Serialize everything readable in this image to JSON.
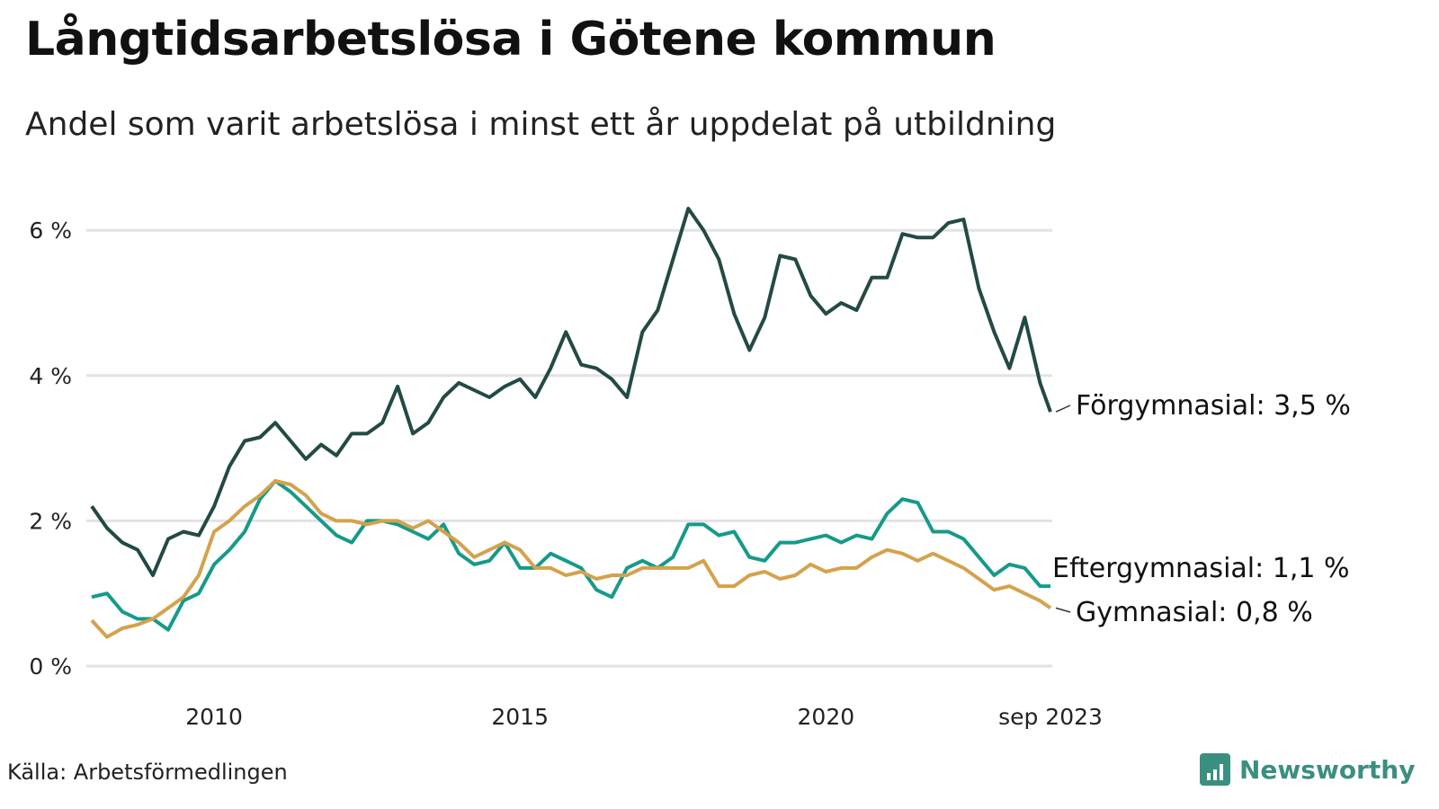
{
  "title": "Långtidsarbetslösa i Götene kommun",
  "subtitle": "Andel som varit arbetslösa i minst ett år uppdelat på utbildning",
  "source": "Källa: Arbetsförmedlingen",
  "brand": "Newsworthy",
  "chart_data": {
    "type": "line",
    "title": "Långtidsarbetslösa i Götene kommun",
    "xlabel": "",
    "ylabel": "",
    "xlim": [
      2008.0,
      2023.67
    ],
    "ylim": [
      0,
      6.6
    ],
    "grid": true,
    "y_ticks": [
      {
        "v": 0,
        "label": "0 %"
      },
      {
        "v": 2,
        "label": "2 %"
      },
      {
        "v": 4,
        "label": "4 %"
      },
      {
        "v": 6,
        "label": "6 %"
      }
    ],
    "x_ticks": [
      {
        "v": 2010,
        "label": "2010"
      },
      {
        "v": 2015,
        "label": "2015"
      },
      {
        "v": 2020,
        "label": "2020"
      },
      {
        "v": 2023.67,
        "label": "sep 2023"
      }
    ],
    "x": [
      2008.0,
      2008.25,
      2008.5,
      2008.75,
      2009.0,
      2009.25,
      2009.5,
      2009.75,
      2010.0,
      2010.25,
      2010.5,
      2010.75,
      2011.0,
      2011.25,
      2011.5,
      2011.75,
      2012.0,
      2012.25,
      2012.5,
      2012.75,
      2013.0,
      2013.25,
      2013.5,
      2013.75,
      2014.0,
      2014.25,
      2014.5,
      2014.75,
      2015.0,
      2015.25,
      2015.5,
      2015.75,
      2016.0,
      2016.25,
      2016.5,
      2016.75,
      2017.0,
      2017.25,
      2017.5,
      2017.75,
      2018.0,
      2018.25,
      2018.5,
      2018.75,
      2019.0,
      2019.25,
      2019.5,
      2019.75,
      2020.0,
      2020.25,
      2020.5,
      2020.75,
      2021.0,
      2021.25,
      2021.5,
      2021.75,
      2022.0,
      2022.25,
      2022.5,
      2022.75,
      2023.0,
      2023.25,
      2023.5,
      2023.67
    ],
    "series": [
      {
        "name": "Förgymnasial",
        "label": "Förgymnasial: 3,5 %",
        "color": "#234a44",
        "values": [
          2.2,
          1.9,
          1.7,
          1.6,
          1.25,
          1.75,
          1.85,
          1.8,
          2.2,
          2.75,
          3.1,
          3.15,
          3.35,
          3.1,
          2.85,
          3.05,
          2.9,
          3.2,
          3.2,
          3.35,
          3.85,
          3.2,
          3.35,
          3.7,
          3.9,
          3.8,
          3.7,
          3.85,
          3.95,
          3.7,
          4.1,
          4.6,
          4.15,
          4.1,
          3.95,
          3.7,
          4.6,
          4.9,
          5.6,
          6.3,
          6.0,
          5.6,
          4.85,
          4.35,
          4.8,
          5.65,
          5.6,
          5.1,
          4.85,
          5.0,
          4.9,
          5.35,
          5.35,
          5.95,
          5.9,
          5.9,
          6.1,
          6.15,
          5.2,
          4.6,
          4.1,
          4.8,
          3.9,
          3.5
        ]
      },
      {
        "name": "Eftergymnasial",
        "label": "Eftergymnasial: 1,1 %",
        "color": "#159a8a",
        "values": [
          0.95,
          1.0,
          0.75,
          0.65,
          0.65,
          0.5,
          0.9,
          1.0,
          1.4,
          1.6,
          1.85,
          2.3,
          2.55,
          2.4,
          2.2,
          2.0,
          1.8,
          1.7,
          2.0,
          2.0,
          1.95,
          1.85,
          1.75,
          1.95,
          1.55,
          1.4,
          1.45,
          1.7,
          1.35,
          1.35,
          1.55,
          1.45,
          1.35,
          1.05,
          0.95,
          1.35,
          1.45,
          1.35,
          1.5,
          1.95,
          1.95,
          1.8,
          1.85,
          1.5,
          1.45,
          1.7,
          1.7,
          1.75,
          1.8,
          1.7,
          1.8,
          1.75,
          2.1,
          2.3,
          2.25,
          1.85,
          1.85,
          1.75,
          1.5,
          1.25,
          1.4,
          1.35,
          1.1,
          1.1
        ]
      },
      {
        "name": "Gymnasial",
        "label": "Gymnasial: 0,8 %",
        "color": "#d4a24c",
        "values": [
          0.63,
          0.4,
          0.52,
          0.57,
          0.65,
          0.8,
          0.95,
          1.25,
          1.85,
          2.0,
          2.2,
          2.35,
          2.55,
          2.5,
          2.35,
          2.1,
          2.0,
          2.0,
          1.95,
          2.0,
          2.0,
          1.9,
          2.0,
          1.85,
          1.7,
          1.5,
          1.6,
          1.7,
          1.6,
          1.35,
          1.35,
          1.25,
          1.3,
          1.2,
          1.25,
          1.25,
          1.35,
          1.35,
          1.35,
          1.35,
          1.45,
          1.1,
          1.1,
          1.25,
          1.3,
          1.2,
          1.25,
          1.4,
          1.3,
          1.35,
          1.35,
          1.5,
          1.6,
          1.55,
          1.45,
          1.55,
          1.45,
          1.35,
          1.2,
          1.05,
          1.1,
          1.0,
          0.9,
          0.8
        ]
      }
    ]
  }
}
